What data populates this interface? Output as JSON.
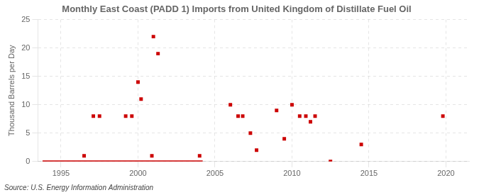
{
  "chart_data": {
    "type": "scatter",
    "title": "Monthly East Coast (PADD 1) Imports from United Kingdom of Distillate Fuel Oil",
    "ylabel": "Thousand Barrels per Day",
    "source": "Source: U.S. Energy Information Administration",
    "series": [
      {
        "type": "scatter",
        "marker": "square",
        "color": "#cc0000",
        "x": [
          1996.5,
          1997.1,
          1997.5,
          1999.2,
          1999.6,
          2000.0,
          2000.2,
          2000.9,
          2001.0,
          2001.3,
          2004.0,
          2006.0,
          2006.5,
          2006.8,
          2007.3,
          2007.7,
          2009.0,
          2009.5,
          2010.0,
          2010.5,
          2010.9,
          2011.2,
          2011.5,
          2012.5,
          2014.5,
          2019.8
        ],
        "values": [
          1,
          8,
          8,
          8,
          8,
          14,
          11,
          1,
          22,
          19,
          1,
          10,
          8,
          8,
          5,
          2,
          9,
          4,
          10,
          8,
          8,
          7,
          8,
          0,
          3,
          8
        ]
      },
      {
        "type": "line",
        "line_style": "solid",
        "color": "#cc0000",
        "x": [
          1993.8,
          2004.2
        ],
        "values": [
          0,
          0
        ]
      }
    ],
    "xlim": [
      1993.5,
      2021.5
    ],
    "xticks": [
      1995,
      2000,
      2005,
      2010,
      2015,
      2020
    ],
    "ylim": [
      0,
      25
    ],
    "yticks": [
      0,
      5,
      10,
      15,
      20,
      25
    ],
    "grid": true
  }
}
